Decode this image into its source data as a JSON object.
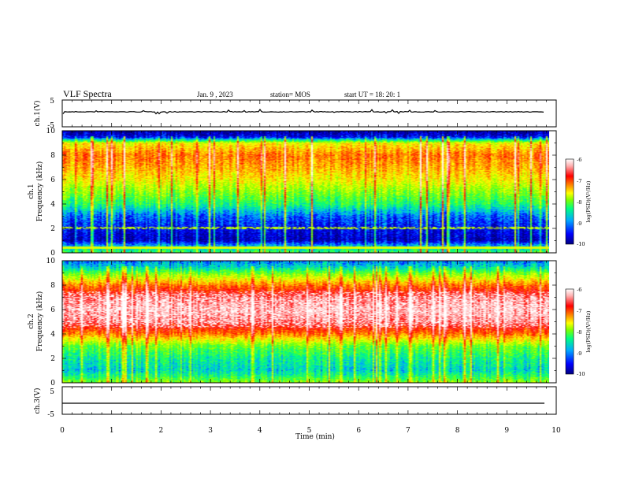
{
  "header": {
    "title": "VLF Spectra",
    "date": "Jan. 9 , 2023",
    "station": "station= MOS",
    "start_ut": "start UT =  18: 20: 1"
  },
  "colors": {
    "scale": [
      "#000080",
      "#0000ff",
      "#00aaff",
      "#00ff80",
      "#80ff00",
      "#ffff00",
      "#ff8000",
      "#ff0000",
      "#ffb0b0",
      "#ffffff"
    ],
    "trace": "#000000"
  },
  "chart_data": [
    {
      "type": "line",
      "name": "ch1-waveform",
      "ylabel": "ch.1(V)",
      "ylim": [
        -5,
        5
      ],
      "y_ticks": [
        "5",
        "-5"
      ],
      "xlim": [
        0,
        10
      ],
      "level": 0
    },
    {
      "type": "heatmap",
      "name": "ch1-spectrogram",
      "ylabel": "ch.1\nFrequency (kHz)",
      "ylim": [
        0,
        10
      ],
      "xlim": [
        0,
        9.85
      ],
      "y_ticks": [
        "0",
        "2",
        "4",
        "6",
        "8",
        "10"
      ],
      "colorbar": {
        "label": "log(PSD)(V²/Hz)",
        "range": [
          -10,
          -6
        ],
        "ticks": [
          "-6",
          "-7",
          "-8",
          "-9",
          "-10"
        ]
      },
      "profile": {
        "freq_khz": [
          0,
          0.5,
          1,
          2,
          3,
          4,
          5,
          6,
          7,
          8,
          9,
          9.5,
          10
        ],
        "log_psd": [
          -8.5,
          -9.0,
          -9.8,
          -9.6,
          -9.3,
          -8.6,
          -8.2,
          -7.8,
          -7.5,
          -7.3,
          -7.8,
          -9.6,
          -9.9
        ]
      }
    },
    {
      "type": "heatmap",
      "name": "ch2-spectrogram",
      "ylabel": "ch.2\nFrequency (kHz)",
      "ylim": [
        0,
        10
      ],
      "xlim": [
        0,
        9.85
      ],
      "y_ticks": [
        "0",
        "2",
        "4",
        "6",
        "8",
        "10"
      ],
      "colorbar": {
        "label": "log(PSD)(V²/Hz)",
        "range": [
          -10,
          -6
        ],
        "ticks": [
          "-6",
          "-7",
          "-8",
          "-9",
          "-10"
        ]
      },
      "profile": {
        "freq_khz": [
          0,
          0.5,
          1,
          2,
          3,
          4,
          5,
          6,
          7,
          8,
          9,
          9.5,
          10
        ],
        "log_psd": [
          -8.2,
          -8.6,
          -8.9,
          -8.7,
          -8.3,
          -7.3,
          -6.6,
          -6.4,
          -6.6,
          -7.3,
          -8.3,
          -8.9,
          -9.2
        ]
      }
    },
    {
      "type": "line",
      "name": "ch3-waveform",
      "ylabel": "ch.3(V)",
      "ylim": [
        -5,
        5
      ],
      "y_ticks": [
        "5",
        "-5"
      ],
      "xlim": [
        0,
        10
      ],
      "level": 0
    }
  ],
  "xaxis": {
    "label": "Time (min)",
    "ticks": [
      "0",
      "1",
      "2",
      "3",
      "4",
      "5",
      "6",
      "7",
      "8",
      "9",
      "10"
    ],
    "range": [
      0,
      10
    ]
  }
}
